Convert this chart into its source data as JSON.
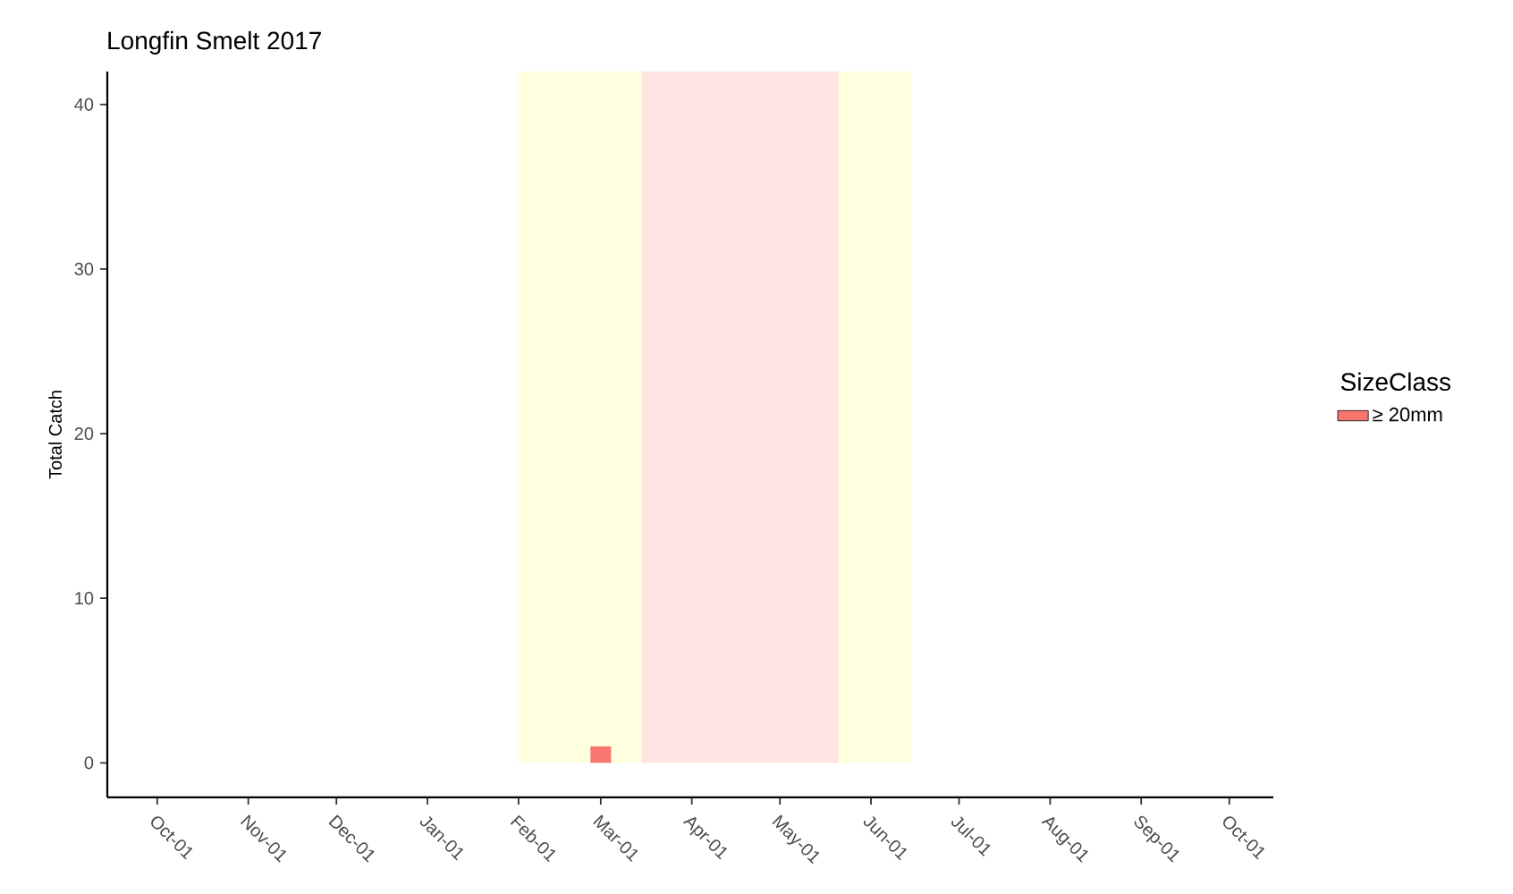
{
  "chart_data": {
    "type": "bar",
    "title": "Longfin Smelt 2017",
    "ylabel": "Total Catch",
    "legend_title": "SizeClass",
    "x": [
      "2017-03-01"
    ],
    "series": [
      {
        "name": "≥ 20mm",
        "color": "#f8766d",
        "values": [
          1
        ]
      }
    ],
    "xlim": [
      "2016-09-14",
      "2017-10-16"
    ],
    "xticks": [
      {
        "value": "2016-10-01",
        "label": "Oct-01"
      },
      {
        "value": "2016-11-01",
        "label": "Nov-01"
      },
      {
        "value": "2016-12-01",
        "label": "Dec-01"
      },
      {
        "value": "2017-01-01",
        "label": "Jan-01"
      },
      {
        "value": "2017-02-01",
        "label": "Feb-01"
      },
      {
        "value": "2017-03-01",
        "label": "Mar-01"
      },
      {
        "value": "2017-04-01",
        "label": "Apr-01"
      },
      {
        "value": "2017-05-01",
        "label": "May-01"
      },
      {
        "value": "2017-06-01",
        "label": "Jun-01"
      },
      {
        "value": "2017-07-01",
        "label": "Jul-01"
      },
      {
        "value": "2017-08-01",
        "label": "Aug-01"
      },
      {
        "value": "2017-09-01",
        "label": "Sep-01"
      },
      {
        "value": "2017-10-01",
        "label": "Oct-01"
      }
    ],
    "ylim": [
      -2.1,
      42
    ],
    "yticks": [
      0,
      10,
      20,
      30,
      40
    ],
    "bands": [
      {
        "axis": "x",
        "from": "2017-02-01",
        "to": "2017-06-15",
        "color": "#ffffe0"
      },
      {
        "axis": "x",
        "from": "2017-03-15",
        "to": "2017-05-21",
        "color": "#ffe4e1"
      }
    ],
    "grid": false,
    "legend": "right"
  }
}
